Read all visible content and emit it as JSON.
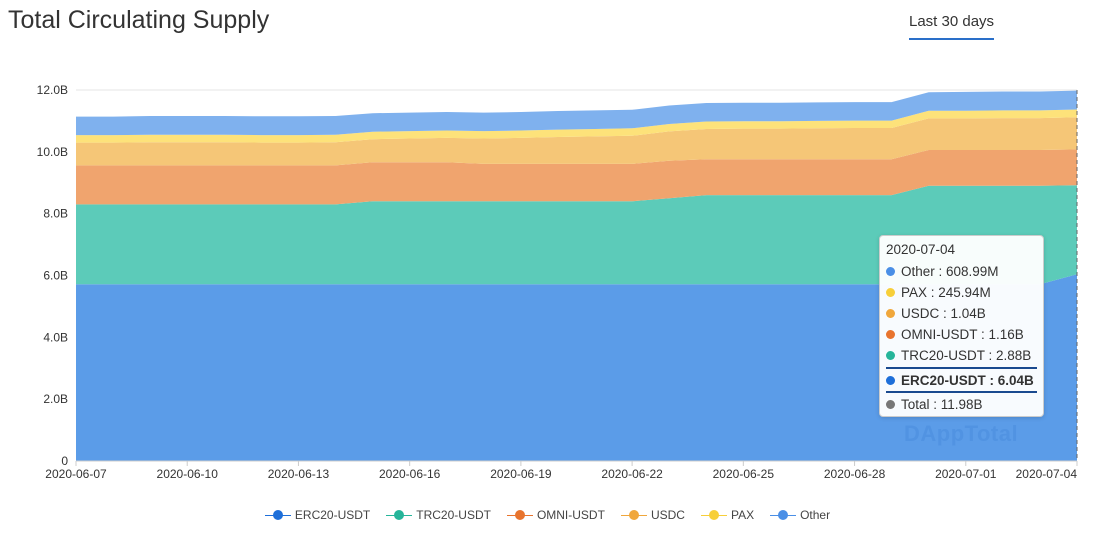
{
  "page_title": "Total Circulating Supply",
  "range_tab": "Last 30 days",
  "watermark": "DAppTotal",
  "colors": {
    "ERC20-USDT": "#5b9ce8",
    "TRC20-USDT": "#5ccbb9",
    "OMNI-USDT": "#f0a46e",
    "USDC": "#f5c677",
    "PAX": "#fde27a",
    "Other": "#7fb1ee"
  },
  "legend_colors": {
    "ERC20-USDT": "#1e6fd9",
    "TRC20-USDT": "#26b59a",
    "OMNI-USDT": "#e8742e",
    "USDC": "#f0a73c",
    "PAX": "#f7cf3a",
    "Other": "#4a8fe6"
  },
  "tooltip": {
    "date": "2020-07-04",
    "rows": [
      {
        "name": "Other",
        "text": "Other : 608.99M",
        "color": "#4a8fe6",
        "highlight": false
      },
      {
        "name": "PAX",
        "text": "PAX : 245.94M",
        "color": "#f7cf3a",
        "highlight": false
      },
      {
        "name": "USDC",
        "text": "USDC : 1.04B",
        "color": "#f0a73c",
        "highlight": false
      },
      {
        "name": "OMNI-USDT",
        "text": "OMNI-USDT : 1.16B",
        "color": "#e8742e",
        "highlight": false
      },
      {
        "name": "TRC20-USDT",
        "text": "TRC20-USDT : 2.88B",
        "color": "#26b59a",
        "highlight": false
      },
      {
        "name": "ERC20-USDT",
        "text": "ERC20-USDT : 6.04B",
        "color": "#1e6fd9",
        "highlight": true
      },
      {
        "name": "Total",
        "text": "Total : 11.98B",
        "color": "#777777",
        "highlight": false
      }
    ]
  },
  "chart_data": {
    "type": "area",
    "stacked": true,
    "title": "Total Circulating Supply",
    "xlabel": "",
    "ylabel": "",
    "ylim": [
      0,
      12
    ],
    "y_unit": "B",
    "y_ticks": [
      "0",
      "2.0B",
      "4.0B",
      "6.0B",
      "8.0B",
      "10.0B",
      "12.0B"
    ],
    "x_ticks": [
      "2020-06-07",
      "2020-06-10",
      "2020-06-13",
      "2020-06-16",
      "2020-06-19",
      "2020-06-22",
      "2020-06-25",
      "2020-06-28",
      "2020-07-01",
      "2020-07-04"
    ],
    "x": [
      "2020-06-07",
      "2020-06-08",
      "2020-06-09",
      "2020-06-10",
      "2020-06-11",
      "2020-06-12",
      "2020-06-13",
      "2020-06-14",
      "2020-06-15",
      "2020-06-16",
      "2020-06-17",
      "2020-06-18",
      "2020-06-19",
      "2020-06-20",
      "2020-06-21",
      "2020-06-22",
      "2020-06-23",
      "2020-06-24",
      "2020-06-25",
      "2020-06-26",
      "2020-06-27",
      "2020-06-28",
      "2020-06-29",
      "2020-06-30",
      "2020-07-01",
      "2020-07-02",
      "2020-07-03",
      "2020-07-04"
    ],
    "grid": true,
    "legend_position": "bottom",
    "series": [
      {
        "name": "ERC20-USDT",
        "values": [
          5.72,
          5.72,
          5.72,
          5.72,
          5.72,
          5.72,
          5.72,
          5.72,
          5.72,
          5.72,
          5.72,
          5.72,
          5.72,
          5.72,
          5.72,
          5.72,
          5.72,
          5.72,
          5.72,
          5.72,
          5.72,
          5.72,
          5.72,
          5.72,
          5.72,
          5.72,
          5.72,
          6.04
        ]
      },
      {
        "name": "TRC20-USDT",
        "values": [
          2.58,
          2.58,
          2.58,
          2.58,
          2.58,
          2.58,
          2.58,
          2.58,
          2.68,
          2.68,
          2.68,
          2.68,
          2.68,
          2.68,
          2.68,
          2.68,
          2.78,
          2.88,
          2.88,
          2.88,
          2.88,
          2.88,
          2.88,
          3.18,
          3.18,
          3.18,
          3.18,
          2.88
        ]
      },
      {
        "name": "OMNI-USDT",
        "values": [
          1.26,
          1.26,
          1.26,
          1.26,
          1.26,
          1.26,
          1.26,
          1.26,
          1.26,
          1.26,
          1.26,
          1.21,
          1.21,
          1.21,
          1.21,
          1.21,
          1.21,
          1.16,
          1.16,
          1.16,
          1.16,
          1.16,
          1.16,
          1.16,
          1.16,
          1.16,
          1.16,
          1.16
        ]
      },
      {
        "name": "USDC",
        "values": [
          0.74,
          0.74,
          0.75,
          0.75,
          0.75,
          0.74,
          0.74,
          0.75,
          0.75,
          0.77,
          0.79,
          0.82,
          0.84,
          0.87,
          0.89,
          0.91,
          0.95,
          0.98,
          0.99,
          0.99,
          1.0,
          1.01,
          1.01,
          1.02,
          1.02,
          1.03,
          1.03,
          1.04
        ]
      },
      {
        "name": "PAX",
        "values": [
          0.24,
          0.24,
          0.24,
          0.24,
          0.24,
          0.24,
          0.24,
          0.24,
          0.24,
          0.24,
          0.24,
          0.24,
          0.24,
          0.24,
          0.24,
          0.24,
          0.24,
          0.24,
          0.24,
          0.24,
          0.24,
          0.24,
          0.24,
          0.25,
          0.25,
          0.25,
          0.25,
          0.25
        ]
      },
      {
        "name": "Other",
        "values": [
          0.6,
          0.6,
          0.61,
          0.61,
          0.61,
          0.61,
          0.61,
          0.61,
          0.6,
          0.6,
          0.6,
          0.6,
          0.6,
          0.6,
          0.6,
          0.6,
          0.6,
          0.6,
          0.6,
          0.6,
          0.6,
          0.6,
          0.6,
          0.6,
          0.61,
          0.61,
          0.61,
          0.61
        ]
      }
    ]
  }
}
